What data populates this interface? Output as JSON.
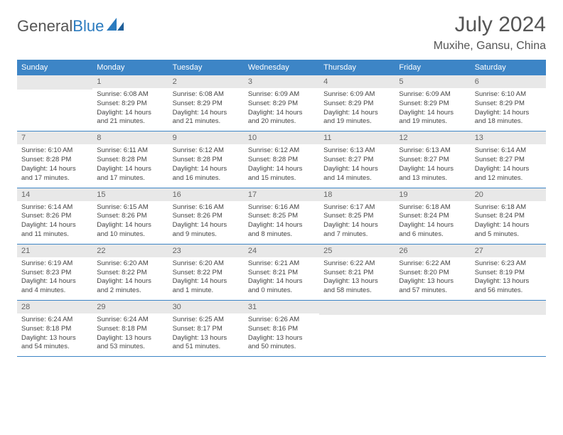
{
  "brand": {
    "part1": "General",
    "part2": "Blue"
  },
  "title": "July 2024",
  "location": "Muxihe, Gansu, China",
  "colors": {
    "header_bg": "#3d85c6",
    "daynum_bg": "#e8e8e8",
    "text": "#555555",
    "body_text": "#444444",
    "rule": "#3d85c6"
  },
  "weekdays": [
    "Sunday",
    "Monday",
    "Tuesday",
    "Wednesday",
    "Thursday",
    "Friday",
    "Saturday"
  ],
  "start_offset": 1,
  "days": [
    {
      "n": 1,
      "sunrise": "6:08 AM",
      "sunset": "8:29 PM",
      "daylight": "14 hours and 21 minutes."
    },
    {
      "n": 2,
      "sunrise": "6:08 AM",
      "sunset": "8:29 PM",
      "daylight": "14 hours and 21 minutes."
    },
    {
      "n": 3,
      "sunrise": "6:09 AM",
      "sunset": "8:29 PM",
      "daylight": "14 hours and 20 minutes."
    },
    {
      "n": 4,
      "sunrise": "6:09 AM",
      "sunset": "8:29 PM",
      "daylight": "14 hours and 19 minutes."
    },
    {
      "n": 5,
      "sunrise": "6:09 AM",
      "sunset": "8:29 PM",
      "daylight": "14 hours and 19 minutes."
    },
    {
      "n": 6,
      "sunrise": "6:10 AM",
      "sunset": "8:29 PM",
      "daylight": "14 hours and 18 minutes."
    },
    {
      "n": 7,
      "sunrise": "6:10 AM",
      "sunset": "8:28 PM",
      "daylight": "14 hours and 17 minutes."
    },
    {
      "n": 8,
      "sunrise": "6:11 AM",
      "sunset": "8:28 PM",
      "daylight": "14 hours and 17 minutes."
    },
    {
      "n": 9,
      "sunrise": "6:12 AM",
      "sunset": "8:28 PM",
      "daylight": "14 hours and 16 minutes."
    },
    {
      "n": 10,
      "sunrise": "6:12 AM",
      "sunset": "8:28 PM",
      "daylight": "14 hours and 15 minutes."
    },
    {
      "n": 11,
      "sunrise": "6:13 AM",
      "sunset": "8:27 PM",
      "daylight": "14 hours and 14 minutes."
    },
    {
      "n": 12,
      "sunrise": "6:13 AM",
      "sunset": "8:27 PM",
      "daylight": "14 hours and 13 minutes."
    },
    {
      "n": 13,
      "sunrise": "6:14 AM",
      "sunset": "8:27 PM",
      "daylight": "14 hours and 12 minutes."
    },
    {
      "n": 14,
      "sunrise": "6:14 AM",
      "sunset": "8:26 PM",
      "daylight": "14 hours and 11 minutes."
    },
    {
      "n": 15,
      "sunrise": "6:15 AM",
      "sunset": "8:26 PM",
      "daylight": "14 hours and 10 minutes."
    },
    {
      "n": 16,
      "sunrise": "6:16 AM",
      "sunset": "8:26 PM",
      "daylight": "14 hours and 9 minutes."
    },
    {
      "n": 17,
      "sunrise": "6:16 AM",
      "sunset": "8:25 PM",
      "daylight": "14 hours and 8 minutes."
    },
    {
      "n": 18,
      "sunrise": "6:17 AM",
      "sunset": "8:25 PM",
      "daylight": "14 hours and 7 minutes."
    },
    {
      "n": 19,
      "sunrise": "6:18 AM",
      "sunset": "8:24 PM",
      "daylight": "14 hours and 6 minutes."
    },
    {
      "n": 20,
      "sunrise": "6:18 AM",
      "sunset": "8:24 PM",
      "daylight": "14 hours and 5 minutes."
    },
    {
      "n": 21,
      "sunrise": "6:19 AM",
      "sunset": "8:23 PM",
      "daylight": "14 hours and 4 minutes."
    },
    {
      "n": 22,
      "sunrise": "6:20 AM",
      "sunset": "8:22 PM",
      "daylight": "14 hours and 2 minutes."
    },
    {
      "n": 23,
      "sunrise": "6:20 AM",
      "sunset": "8:22 PM",
      "daylight": "14 hours and 1 minute."
    },
    {
      "n": 24,
      "sunrise": "6:21 AM",
      "sunset": "8:21 PM",
      "daylight": "14 hours and 0 minutes."
    },
    {
      "n": 25,
      "sunrise": "6:22 AM",
      "sunset": "8:21 PM",
      "daylight": "13 hours and 58 minutes."
    },
    {
      "n": 26,
      "sunrise": "6:22 AM",
      "sunset": "8:20 PM",
      "daylight": "13 hours and 57 minutes."
    },
    {
      "n": 27,
      "sunrise": "6:23 AM",
      "sunset": "8:19 PM",
      "daylight": "13 hours and 56 minutes."
    },
    {
      "n": 28,
      "sunrise": "6:24 AM",
      "sunset": "8:18 PM",
      "daylight": "13 hours and 54 minutes."
    },
    {
      "n": 29,
      "sunrise": "6:24 AM",
      "sunset": "8:18 PM",
      "daylight": "13 hours and 53 minutes."
    },
    {
      "n": 30,
      "sunrise": "6:25 AM",
      "sunset": "8:17 PM",
      "daylight": "13 hours and 51 minutes."
    },
    {
      "n": 31,
      "sunrise": "6:26 AM",
      "sunset": "8:16 PM",
      "daylight": "13 hours and 50 minutes."
    }
  ],
  "labels": {
    "sunrise": "Sunrise:",
    "sunset": "Sunset:",
    "daylight": "Daylight:"
  }
}
